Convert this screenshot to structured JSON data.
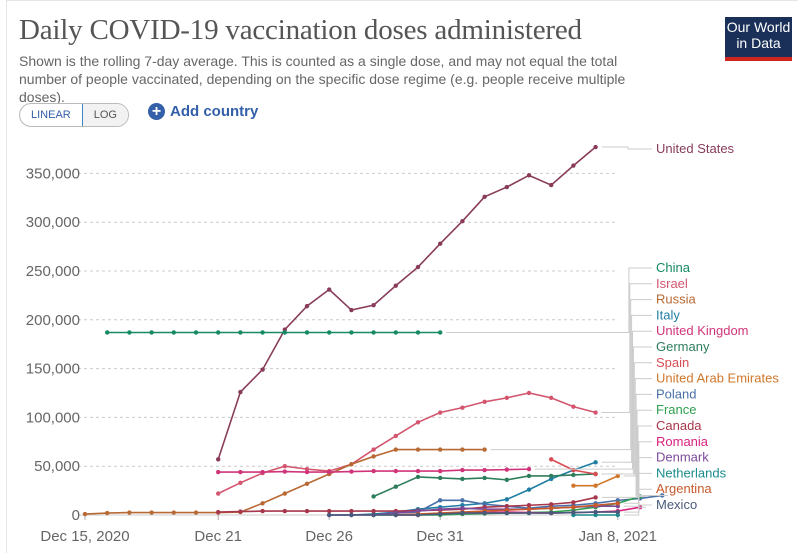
{
  "header": {
    "title": "Daily COVID-19 vaccination doses administered",
    "subtitle": "Shown is the rolling 7-day average. This is counted as a single dose, and may not equal the total number of people vaccinated, depending on the specific dose regime (e.g. people receive multiple doses).",
    "logo_line1": "Our World",
    "logo_line2": "in Data"
  },
  "controls": {
    "linear_label": "LINEAR",
    "log_label": "LOG",
    "add_country_label": "Add country",
    "active_scale": "linear"
  },
  "chart_data": {
    "type": "line",
    "title": "Daily COVID-19 vaccination doses administered",
    "xlabel": "",
    "ylabel": "",
    "x_start": "2020-12-15",
    "x_end": "2021-01-08",
    "x_ticks": [
      {
        "day": 0,
        "label": "Dec 15, 2020"
      },
      {
        "day": 6,
        "label": "Dec 21"
      },
      {
        "day": 11,
        "label": "Dec 26"
      },
      {
        "day": 16,
        "label": "Dec 31"
      },
      {
        "day": 24,
        "label": "Jan 8, 2021"
      }
    ],
    "y_ticks": [
      0,
      50000,
      100000,
      150000,
      200000,
      250000,
      300000,
      350000
    ],
    "y_tick_labels": [
      "0",
      "50,000",
      "100,000",
      "150,000",
      "200,000",
      "250,000",
      "300,000",
      "350,000"
    ],
    "ylim": [
      0,
      380000
    ],
    "grid": true,
    "legend": "right (line labels)",
    "series": [
      {
        "name": "United States",
        "color": "#883c5a",
        "start_day": 6,
        "values": [
          57000,
          126000,
          149000,
          190000,
          214000,
          231000,
          210000,
          215000,
          235000,
          254000,
          278000,
          301000,
          326000,
          336000,
          348000,
          338000,
          358000,
          377000
        ]
      },
      {
        "name": "China",
        "color": "#158a63",
        "start_day": 1,
        "values": [
          187000,
          187000,
          187000,
          187000,
          187000,
          187000,
          187000,
          187000,
          187000,
          187000,
          187000,
          187000,
          187000,
          187000,
          187000,
          187000
        ]
      },
      {
        "name": "Israel",
        "color": "#d3566e",
        "start_day": 6,
        "values": [
          22000,
          33000,
          43000,
          50000,
          47000,
          45000,
          52000,
          67000,
          81000,
          95000,
          105000,
          110000,
          116000,
          120000,
          125000,
          120000,
          111000,
          105000
        ]
      },
      {
        "name": "Russia",
        "color": "#b86a35",
        "start_day": 0,
        "values": [
          1000,
          2000,
          2500,
          2500,
          2500,
          2500,
          2500,
          3000,
          12000,
          22000,
          32000,
          42000,
          52000,
          60000,
          67000,
          67000,
          67000,
          67000,
          67000
        ]
      },
      {
        "name": "Italy",
        "color": "#1f7ea3",
        "start_day": 11,
        "values": [
          0,
          0,
          1000,
          3000,
          6000,
          8000,
          10000,
          12000,
          16000,
          26000,
          37000,
          46000,
          54000
        ]
      },
      {
        "name": "United Kingdom",
        "color": "#d0357a",
        "start_day": 6,
        "values": [
          44000,
          44000,
          44000,
          44500,
          44000,
          44000,
          44500,
          45000,
          45000,
          45000,
          45000,
          46000,
          46000,
          46500,
          47000
        ]
      },
      {
        "name": "Germany",
        "color": "#2e7d5b",
        "start_day": 13,
        "values": [
          19000,
          29000,
          39000,
          38000,
          37000,
          38000,
          36000,
          40000,
          40000,
          41000,
          42000
        ]
      },
      {
        "name": "Spain",
        "color": "#d94c53",
        "start_day": 21,
        "values": [
          57000,
          46000,
          42000
        ]
      },
      {
        "name": "United Arab Emirates",
        "color": "#d0772b",
        "start_day": 22,
        "values": [
          30000,
          30000,
          40000
        ]
      },
      {
        "name": "Poland",
        "color": "#4a71a8",
        "start_day": 13,
        "values": [
          0,
          2000,
          3000,
          15000,
          15000,
          11000,
          9000,
          7000,
          9000,
          10000,
          12000,
          15000,
          17000,
          20000
        ]
      },
      {
        "name": "France",
        "color": "#2e9e4f",
        "start_day": 13,
        "values": [
          0,
          0,
          0,
          0,
          1000,
          1500,
          2000,
          2500,
          3000,
          5000,
          8000,
          12000,
          19000
        ]
      },
      {
        "name": "Canada",
        "color": "#a7374b",
        "start_day": 6,
        "values": [
          3000,
          3500,
          4000,
          4000,
          4000,
          4000,
          4000,
          4000,
          4000,
          4500,
          5000,
          6000,
          8000,
          9000,
          10000,
          11000,
          13000,
          18000
        ]
      },
      {
        "name": "Romania",
        "color": "#d8227d",
        "start_day": 14,
        "values": [
          0,
          0,
          2000,
          2000,
          2500,
          3000,
          2500,
          2000,
          2500,
          3000,
          4000,
          8000
        ]
      },
      {
        "name": "Denmark",
        "color": "#7d4a9a",
        "start_day": 11,
        "values": [
          0,
          0,
          0,
          2000,
          4000,
          6000,
          7000,
          6000,
          6000,
          6000,
          7000,
          8000,
          9000,
          9000
        ]
      },
      {
        "name": "Netherlands",
        "color": "#1a8c8c",
        "start_day": 22,
        "values": [
          0,
          0,
          0
        ]
      },
      {
        "name": "Argentina",
        "color": "#c85a2a",
        "start_day": 14,
        "values": [
          0,
          1000,
          2000,
          3000,
          4000,
          5000,
          6000,
          7000,
          8000,
          10000,
          12000
        ]
      },
      {
        "name": "Mexico",
        "color": "#495a7a",
        "start_day": 11,
        "values": [
          0,
          0,
          0,
          0,
          0,
          1000,
          2000,
          2000,
          2000,
          2000,
          2000,
          2500,
          3000,
          3000
        ]
      }
    ],
    "labels_order": [
      "United States",
      "China",
      "Israel",
      "Russia",
      "Italy",
      "United Kingdom",
      "Germany",
      "Spain",
      "United Arab Emirates",
      "Poland",
      "France",
      "Canada",
      "Romania",
      "Denmark",
      "Netherlands",
      "Argentina",
      "Mexico"
    ]
  }
}
